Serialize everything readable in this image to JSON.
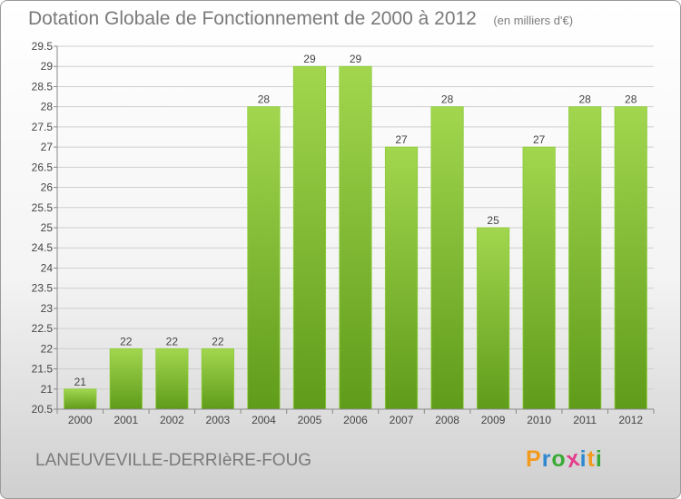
{
  "title": "Dotation Globale de Fonctionnement de 2000 à 2012",
  "unit_note": "(en milliers d'€)",
  "commune": "LANEUVEVILLE-DERRIèRE-FOUG",
  "logo": {
    "letters": [
      "P",
      "r",
      "o",
      "x",
      "i",
      "t",
      "i"
    ],
    "colors": [
      "#f39a1e",
      "#2f88d0",
      "#3aaa35",
      "#e43c8b",
      "#2f88d0",
      "#f39a1e",
      "#3aaa35"
    ]
  },
  "colors": {
    "bar": "#7fbf2e",
    "grid": "#cfcfcf",
    "axis": "#888888",
    "text": "#444444"
  },
  "chart_data": {
    "type": "bar",
    "title": "Dotation Globale de Fonctionnement de 2000 à 2012",
    "xlabel": "",
    "ylabel": "",
    "categories": [
      "2000",
      "2001",
      "2002",
      "2003",
      "2004",
      "2005",
      "2006",
      "2007",
      "2008",
      "2009",
      "2010",
      "2011",
      "2012"
    ],
    "values": [
      21,
      22,
      22,
      22,
      28,
      29,
      29,
      27,
      28,
      25,
      27,
      28,
      28
    ],
    "labels": [
      "21",
      "22",
      "22",
      "22",
      "28",
      "29",
      "29",
      "27",
      "28",
      "25",
      "27",
      "28",
      "28"
    ],
    "ylim": [
      20.5,
      29.5
    ],
    "yticks": [
      "20.5",
      "21",
      "21.5",
      "22",
      "22.5",
      "23",
      "23.5",
      "24",
      "24.5",
      "25",
      "25.5",
      "26",
      "26.5",
      "27",
      "27.5",
      "28",
      "28.5",
      "29",
      "29.5"
    ],
    "grid": true,
    "legend": "none"
  }
}
